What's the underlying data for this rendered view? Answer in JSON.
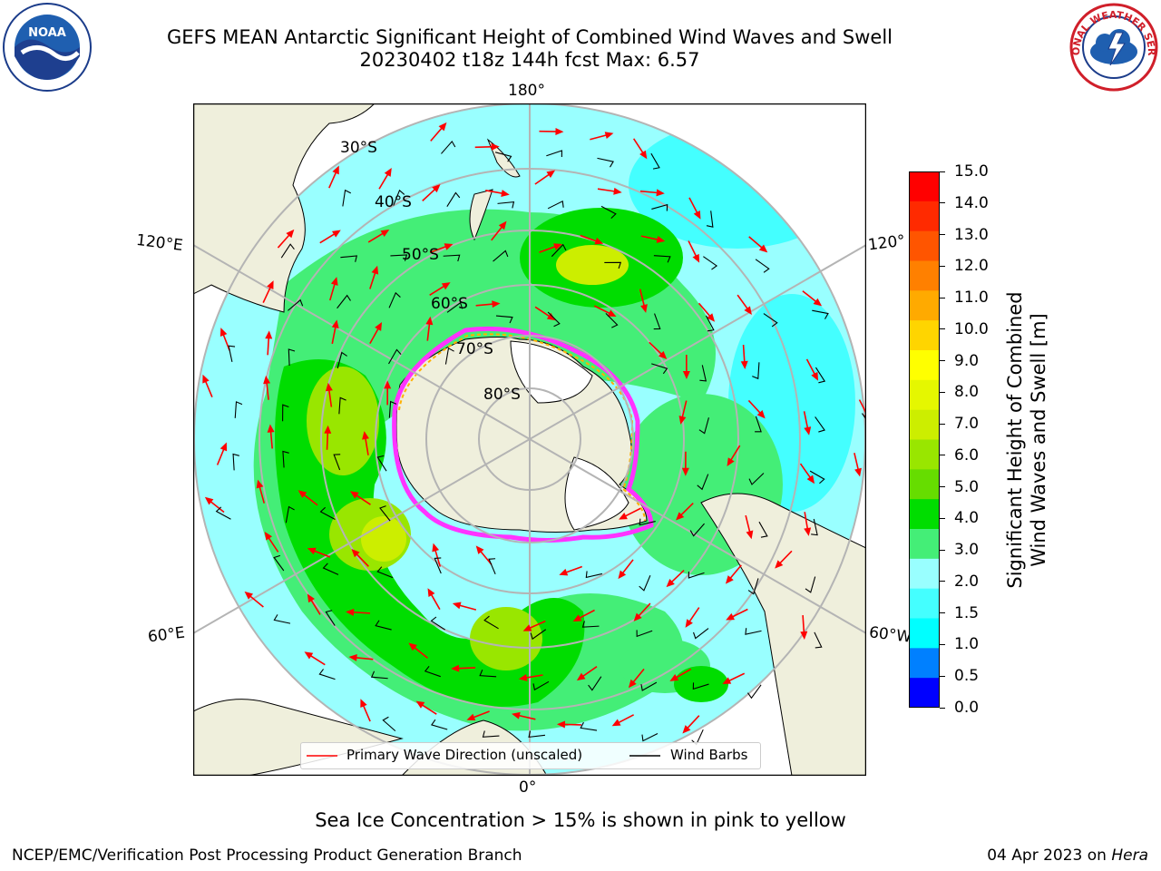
{
  "header": {
    "title_line1": "GEFS MEAN Antarctic Significant Height of Combined Wind Waves and Swell",
    "title_line2": "20230402 t18z 144h fcst   Max: 6.57"
  },
  "logos": {
    "left": {
      "icon": "noaa-logo",
      "text": "NOAA"
    },
    "right": {
      "icon": "nws-logo",
      "text": "NATIONAL WEATHER SERVICE"
    }
  },
  "map": {
    "projection": "south-polar-stereographic",
    "longitude_labels": {
      "top": "180°",
      "bottom": "0°",
      "left_upper": "120°E",
      "left_lower": "60°E",
      "right_upper": "120°",
      "right_lower": "60°W"
    },
    "latitude_labels": [
      "30°S",
      "40°S",
      "50°S",
      "60°S",
      "70°S",
      "80°S"
    ],
    "colors": {
      "land": "#efefdc",
      "ocean_background": "#ffffff",
      "grid": "#b4b4b4",
      "wave_arrow": "#ff0000",
      "wind_barb": "#000000",
      "sea_ice_edge": [
        "#ff33ff",
        "#ffb000"
      ]
    }
  },
  "legend": {
    "wave_direction_label": "Primary Wave Direction (unscaled)",
    "wind_barb_label": "Wind Barbs"
  },
  "colorbar": {
    "label_line1": "Significant Height of Combined",
    "label_line2": "Wind Waves and Swell [m]",
    "ticks": [
      "15.0",
      "14.0",
      "13.0",
      "12.0",
      "11.0",
      "10.0",
      "9.0",
      "8.0",
      "7.0",
      "6.0",
      "5.0",
      "4.0",
      "3.0",
      "2.0",
      "1.5",
      "1.0",
      "0.5",
      "0.0"
    ],
    "colors_top_to_bottom": [
      "#ff0000",
      "#ff2a00",
      "#ff5500",
      "#ff8000",
      "#ffaa00",
      "#ffd500",
      "#ffff00",
      "#e5f700",
      "#ccee00",
      "#99e600",
      "#66dd00",
      "#00dd00",
      "#44ee77",
      "#99ffff",
      "#44ffff",
      "#00ffff",
      "#0080ff",
      "#0000ff"
    ]
  },
  "notes": {
    "sea_ice": "Sea Ice Concentration > 15% is shown in pink to yellow"
  },
  "footer": {
    "left": "NCEP/EMC/Verification Post Processing Product Generation Branch",
    "right_date": "04 Apr 2023 on ",
    "right_machine": "Hera"
  }
}
